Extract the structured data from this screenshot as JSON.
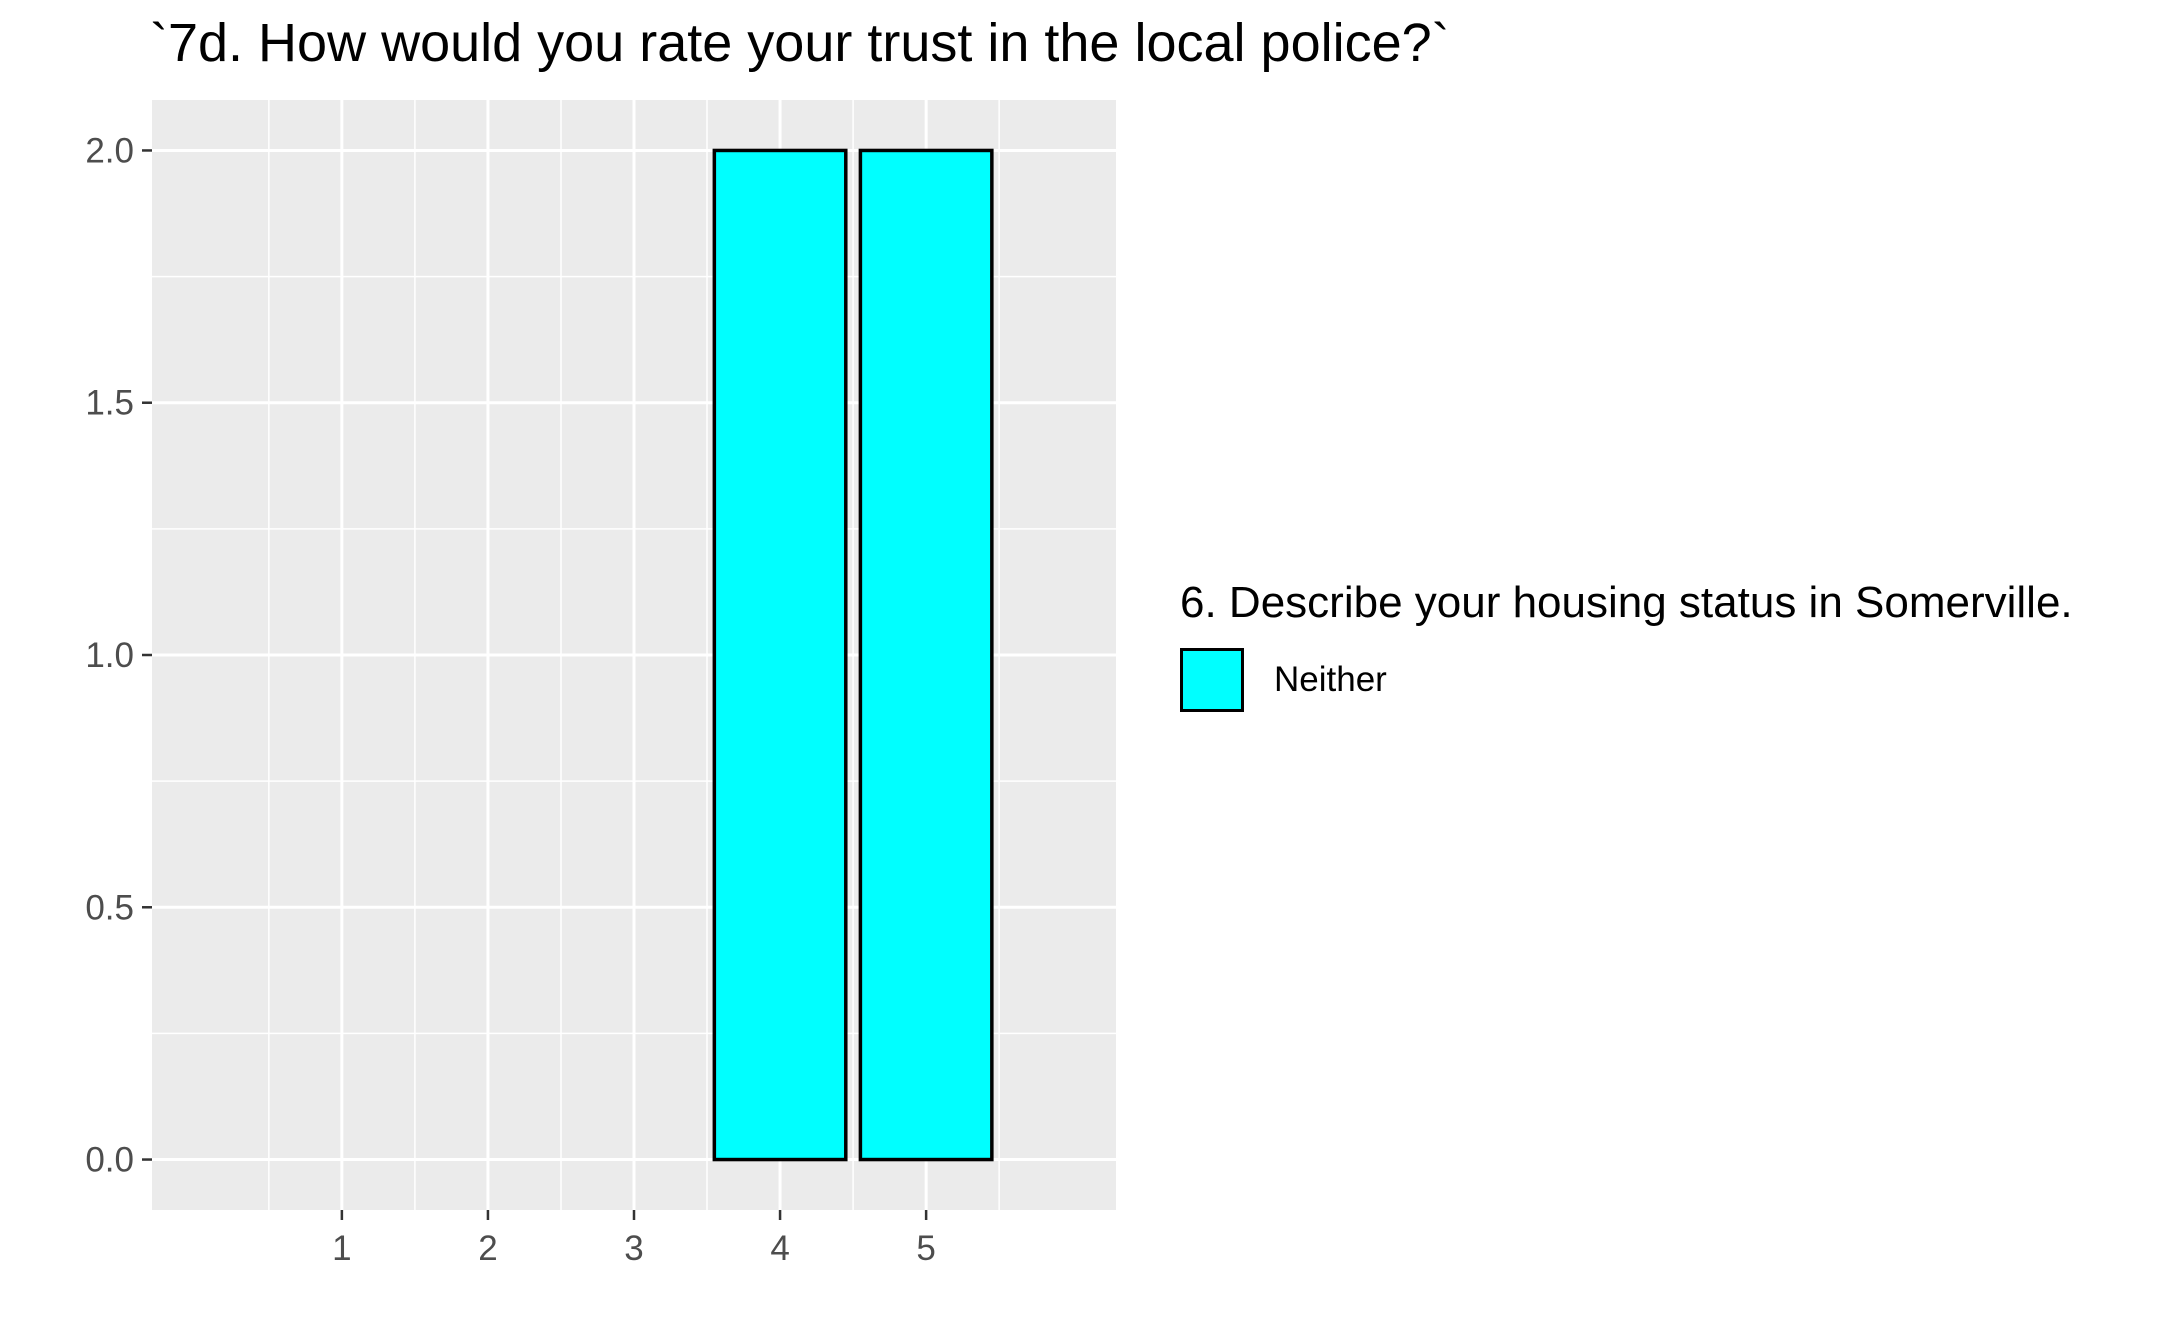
{
  "chart_data": {
    "type": "bar",
    "title": "`7d. How would you rate your trust in the local police?`",
    "xlabel": "",
    "ylabel": "",
    "x_ticks": [
      "1",
      "2",
      "3",
      "4",
      "5"
    ],
    "y_ticks": [
      "0.0",
      "0.5",
      "1.0",
      "1.5",
      "2.0"
    ],
    "xlim": [
      -0.3,
      6.3
    ],
    "ylim": [
      -0.1,
      2.1
    ],
    "bar_width": 0.9,
    "series": [
      {
        "name": "Neither",
        "color": "#00FFFF",
        "points": [
          {
            "x": 4,
            "y": 2
          },
          {
            "x": 5,
            "y": 2
          }
        ]
      }
    ],
    "legend": {
      "title": "6. Describe your housing status in Somerville.",
      "position": "right"
    },
    "panel_background": "#EBEBEB",
    "grid": true
  }
}
